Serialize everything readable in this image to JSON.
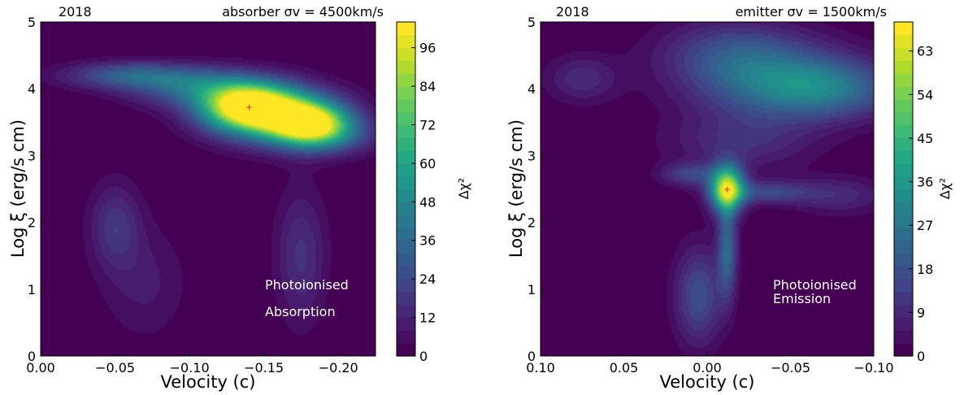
{
  "chart_data": [
    {
      "type": "heatmap",
      "year_label": "2018",
      "corner_title": "absorber σv = 4500km/s",
      "xlabel": "Velocity (c)",
      "ylabel": "Log ξ (erg/s cm)",
      "xlim": [
        0.0,
        -0.225
      ],
      "ylim": [
        0,
        5
      ],
      "x_ticks": [
        0.0,
        -0.05,
        -0.1,
        -0.15,
        -0.2
      ],
      "x_tick_labels": [
        "0.00",
        "−0.05",
        "−0.10",
        "−0.15",
        "−0.20"
      ],
      "y_ticks": [
        0,
        1,
        2,
        3,
        4,
        5
      ],
      "y_tick_labels": [
        "0",
        "1",
        "2",
        "3",
        "4",
        "5"
      ],
      "annotations": [
        "Photoionised",
        "Absorption"
      ],
      "best_fit": {
        "x": -0.14,
        "y": 3.73
      },
      "colorbar": {
        "label": "Δχ²",
        "range": [
          0,
          104
        ],
        "ticks": [
          0,
          12,
          24,
          36,
          48,
          60,
          72,
          84,
          96
        ],
        "tick_labels": [
          "0",
          "12",
          "24",
          "36",
          "48",
          "60",
          "72",
          "84",
          "96"
        ]
      },
      "blobs": [
        {
          "x": -0.14,
          "y": 3.73,
          "sx": 0.022,
          "sy": 0.24,
          "peak": 102
        },
        {
          "x": -0.18,
          "y": 3.47,
          "sx": 0.018,
          "sy": 0.22,
          "peak": 92
        },
        {
          "x": -0.16,
          "y": 3.6,
          "sx": 0.03,
          "sy": 0.3,
          "peak": 50
        },
        {
          "x": -0.06,
          "y": 4.2,
          "sx": 0.03,
          "sy": 0.14,
          "peak": 32
        },
        {
          "x": -0.105,
          "y": 4.02,
          "sx": 0.03,
          "sy": 0.2,
          "peak": 36
        },
        {
          "x": -0.05,
          "y": 1.95,
          "sx": 0.012,
          "sy": 0.45,
          "peak": 18
        },
        {
          "x": -0.07,
          "y": 1.1,
          "sx": 0.02,
          "sy": 0.6,
          "peak": 9
        },
        {
          "x": -0.175,
          "y": 1.5,
          "sx": 0.012,
          "sy": 0.7,
          "peak": 17
        },
        {
          "x": -0.2,
          "y": 3.3,
          "sx": 0.02,
          "sy": 0.2,
          "peak": 20
        }
      ]
    },
    {
      "type": "heatmap",
      "year_label": "2018",
      "corner_title": "emitter σv = 1500km/s",
      "xlabel": "Velocity (c)",
      "ylabel": "Log ξ (erg/s cm)",
      "xlim": [
        0.1,
        -0.1
      ],
      "ylim": [
        0,
        5
      ],
      "x_ticks": [
        0.1,
        0.05,
        0.0,
        -0.05,
        -0.1
      ],
      "x_tick_labels": [
        "0.10",
        "0.05",
        "0.00",
        "−0.05",
        "−0.10"
      ],
      "y_ticks": [
        0,
        1,
        2,
        3,
        4,
        5
      ],
      "y_tick_labels": [
        "0",
        "1",
        "2",
        "3",
        "4",
        "5"
      ],
      "annotations": [
        "Photoionised",
        "Emission"
      ],
      "best_fit": {
        "x": -0.012,
        "y": 2.5
      },
      "colorbar": {
        "label": "Δχ²",
        "range": [
          0,
          69
        ],
        "ticks": [
          0,
          9,
          18,
          27,
          36,
          45,
          54,
          63
        ],
        "tick_labels": [
          "0",
          "9",
          "18",
          "27",
          "36",
          "45",
          "54",
          "63"
        ]
      },
      "blobs": [
        {
          "x": -0.012,
          "y": 2.5,
          "sx": 0.007,
          "sy": 0.24,
          "peak": 62
        },
        {
          "x": -0.012,
          "y": 1.6,
          "sx": 0.004,
          "sy": 0.5,
          "peak": 24
        },
        {
          "x": 0.005,
          "y": 0.9,
          "sx": 0.01,
          "sy": 0.5,
          "peak": 18
        },
        {
          "x": 0.01,
          "y": 2.72,
          "sx": 0.012,
          "sy": 0.12,
          "peak": 15
        },
        {
          "x": -0.035,
          "y": 2.45,
          "sx": 0.02,
          "sy": 0.12,
          "peak": 16
        },
        {
          "x": -0.04,
          "y": 4.1,
          "sx": 0.035,
          "sy": 0.4,
          "peak": 22
        },
        {
          "x": -0.075,
          "y": 4.0,
          "sx": 0.03,
          "sy": 0.3,
          "peak": 20
        },
        {
          "x": -0.015,
          "y": 4.55,
          "sx": 0.03,
          "sy": 0.35,
          "peak": 14
        },
        {
          "x": 0.075,
          "y": 4.15,
          "sx": 0.015,
          "sy": 0.25,
          "peak": 10
        },
        {
          "x": -0.08,
          "y": 2.4,
          "sx": 0.02,
          "sy": 0.2,
          "peak": 9
        },
        {
          "x": -0.02,
          "y": 3.2,
          "sx": 0.03,
          "sy": 0.3,
          "peak": 10
        }
      ]
    }
  ]
}
